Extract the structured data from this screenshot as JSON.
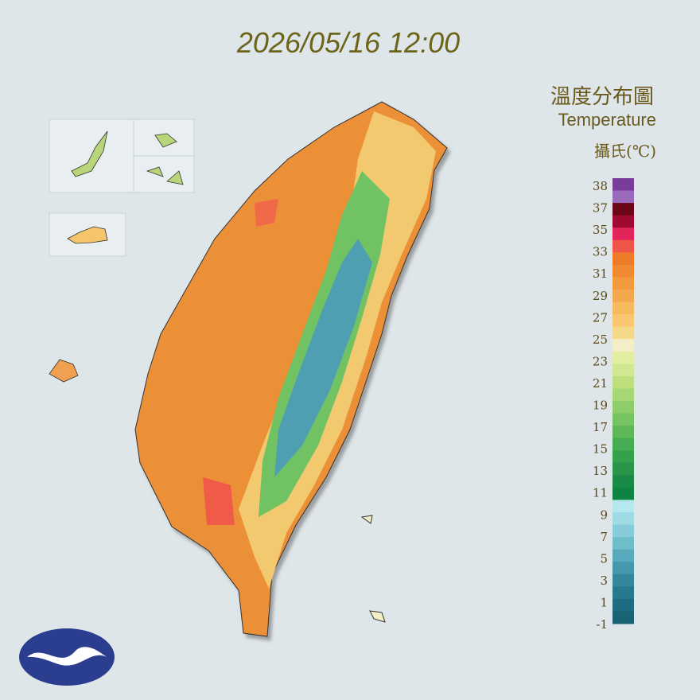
{
  "header": {
    "title": "2026/05/16 12:00"
  },
  "legend": {
    "title": "溫度分布圖",
    "subtitle": "Temperature",
    "unit": "攝氏(℃)",
    "ticks": [
      "38",
      "37",
      "35",
      "33",
      "31",
      "29",
      "27",
      "25",
      "23",
      "21",
      "19",
      "17",
      "15",
      "13",
      "11",
      "9",
      "7",
      "5",
      "3",
      "1",
      "-1"
    ],
    "colors": [
      "#7a3c9a",
      "#9a6bbd",
      "#6b0618",
      "#a10a30",
      "#e3245a",
      "#f05648",
      "#ee7b2a",
      "#f0892f",
      "#f29a3e",
      "#f4a84e",
      "#f6b95e",
      "#f8c871",
      "#f6d889",
      "#f3eec6",
      "#e4eea2",
      "#d2e890",
      "#bde07f",
      "#a6d774",
      "#8ecd6a",
      "#76c361",
      "#5eb85a",
      "#47ad53",
      "#36a14d",
      "#289548",
      "#1a8b46",
      "#0e8442",
      "#b4e8ee",
      "#9fdbe4",
      "#86ccd8",
      "#6fbccb",
      "#5aaabd",
      "#4698ad",
      "#35879e",
      "#28788f",
      "#1f6b82",
      "#1a6276"
    ]
  }
}
